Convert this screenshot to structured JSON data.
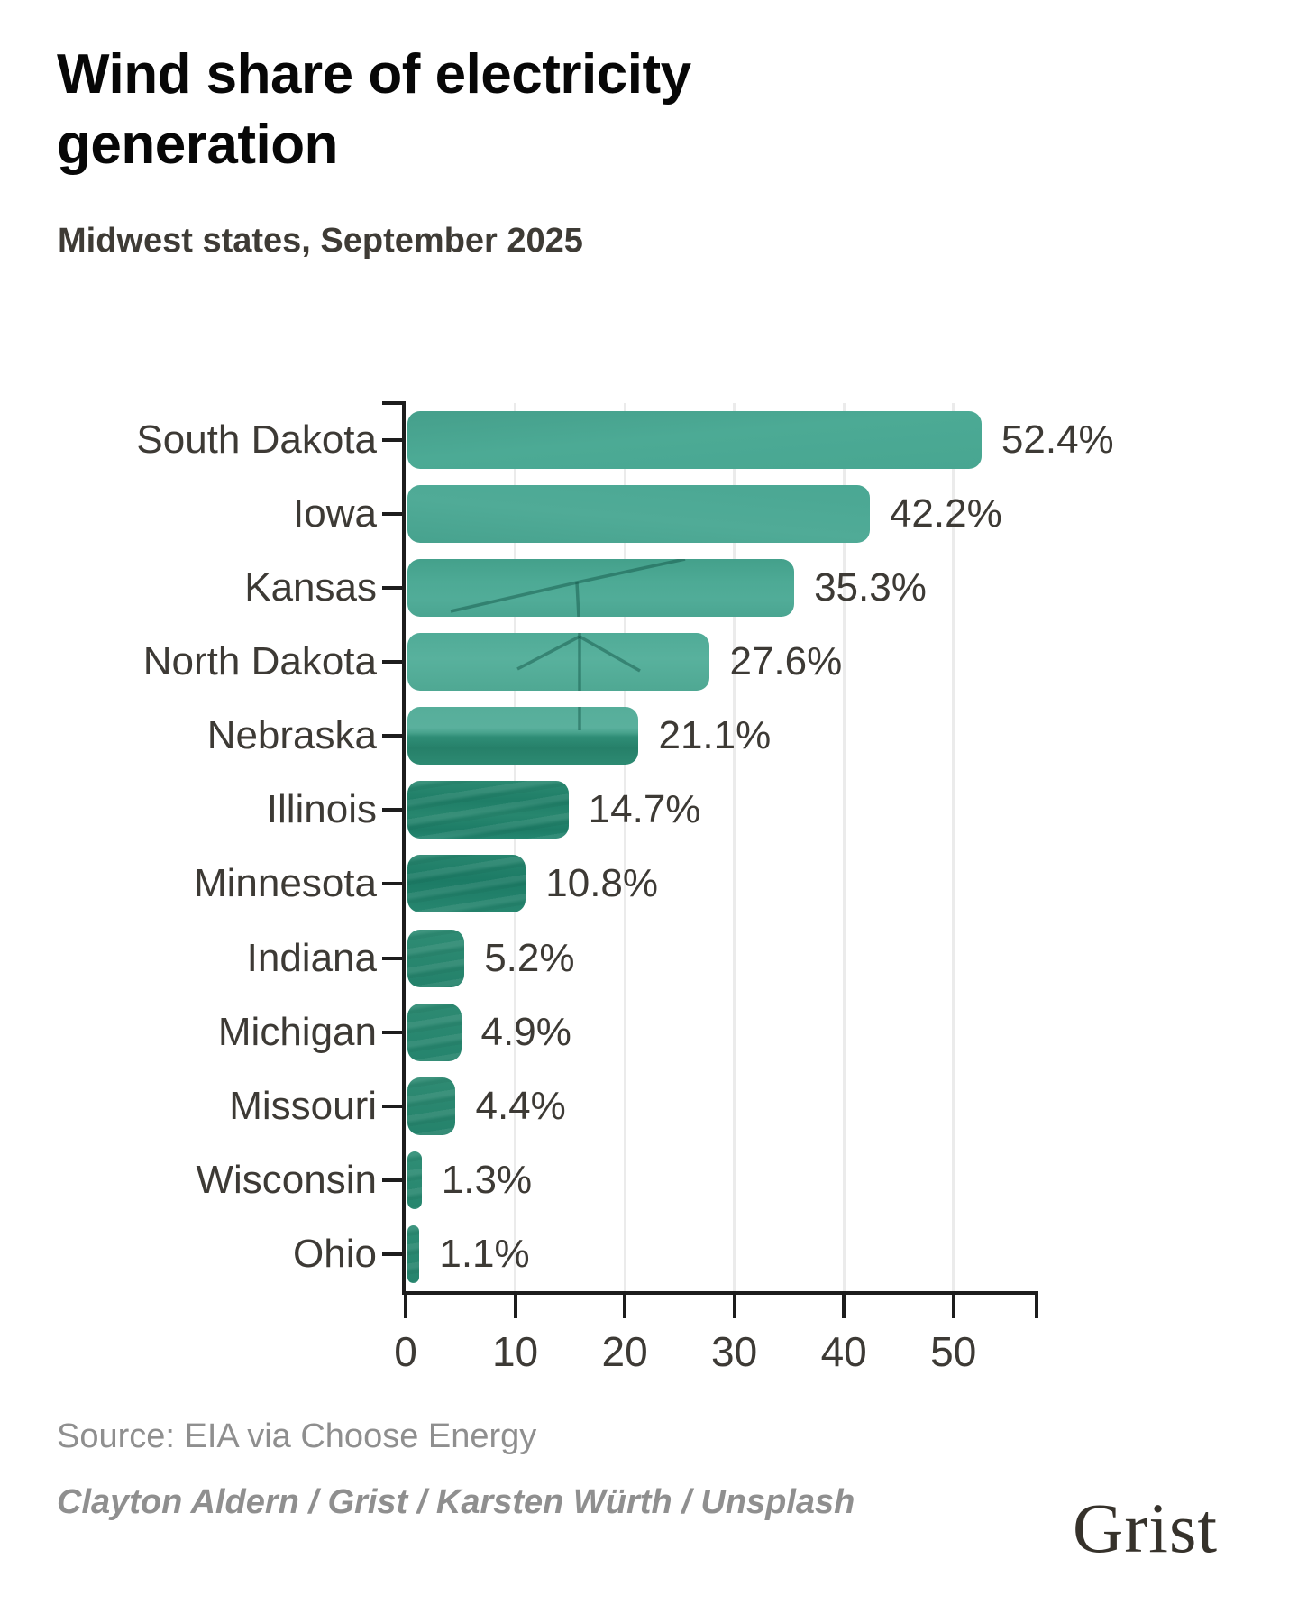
{
  "title": "Wind share of electricity generation",
  "subtitle": "Midwest states, September 2025",
  "source": "Source: EIA via Choose Energy",
  "credit": "Clayton Aldern / Grist / Karsten Würth / Unsplash",
  "logo": "Grist",
  "colors": {
    "bar_teal_light": "#4caa95",
    "bar_teal_dark": "#1f7e68",
    "axis": "#1d1d1d",
    "text": "#3d3a35",
    "muted_text": "#8f8f8f",
    "gridline": "#ebebeb",
    "background": "#ffffff"
  },
  "chart_data": {
    "type": "bar",
    "orientation": "horizontal",
    "title": "Wind share of electricity generation",
    "subtitle": "Midwest states, September 2025",
    "categories": [
      "South Dakota",
      "Iowa",
      "Kansas",
      "North Dakota",
      "Nebraska",
      "Illinois",
      "Minnesota",
      "Indiana",
      "Michigan",
      "Missouri",
      "Wisconsin",
      "Ohio"
    ],
    "values": [
      52.4,
      42.2,
      35.3,
      27.6,
      21.1,
      14.7,
      10.8,
      5.2,
      4.9,
      4.4,
      1.3,
      1.1
    ],
    "value_labels": [
      "52.4%",
      "42.2%",
      "35.3%",
      "27.6%",
      "21.1%",
      "14.7%",
      "10.8%",
      "5.2%",
      "4.9%",
      "4.4%",
      "1.3%",
      "1.1%"
    ],
    "xlabel": "",
    "ylabel": "",
    "xlim": [
      0,
      57.5
    ],
    "x_ticks": [
      0,
      10,
      20,
      30,
      40,
      50
    ],
    "grid": "vertical-light",
    "legend": "none",
    "bar_style": "photo of wind turbine landscape masked into teal bars"
  }
}
